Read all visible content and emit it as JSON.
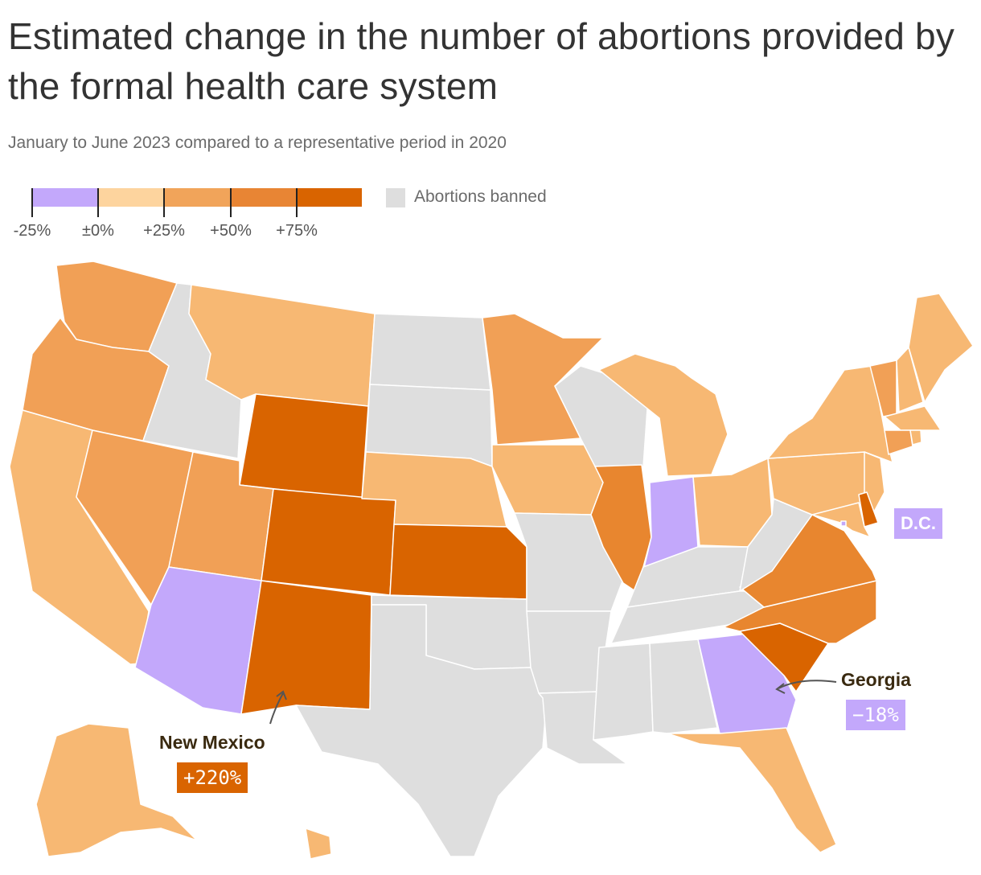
{
  "header": {
    "title": "Estimated change in the number of abortions provided by the formal health care system",
    "subtitle": "January to June 2023 compared to a representative period in 2020"
  },
  "legend": {
    "ticks": [
      "-25%",
      "±0%",
      "+25%",
      "+50%",
      "+75%"
    ],
    "bins": [
      {
        "range": "-25% to 0%",
        "color": "#c3a8fb"
      },
      {
        "range": "0% to +25%",
        "color": "#fdd49e"
      },
      {
        "range": "+25% to +50%",
        "color": "#f1a45a"
      },
      {
        "range": "+50% to +75%",
        "color": "#e88534"
      },
      {
        "range": "+75% and above",
        "color": "#d96400"
      }
    ],
    "banned_label": "Abortions banned",
    "banned_color": "#dedede"
  },
  "palette": {
    "decrease": "#c3a8fb",
    "light": "#f7b873",
    "mid": "#f1a056",
    "high": "#e8862f",
    "highest": "#d96400",
    "banned": "#dedede"
  },
  "callouts": {
    "new_mexico": {
      "name": "New Mexico",
      "value": "+220%"
    },
    "georgia": {
      "name": "Georgia",
      "value": "−18%"
    },
    "dc": {
      "name": "D.C."
    }
  },
  "states": {
    "WA": "mid",
    "OR": "mid",
    "CA": "light",
    "ID": "banned",
    "NV": "mid",
    "MT": "light",
    "WY": "highest",
    "UT": "mid",
    "AZ": "decrease",
    "CO": "highest",
    "NM": "highest",
    "ND": "banned",
    "SD": "banned",
    "NE": "light",
    "KS": "highest",
    "OK": "banned",
    "TX": "banned",
    "MN": "mid",
    "IA": "light",
    "MO": "banned",
    "AR": "banned",
    "LA": "banned",
    "WI": "banned",
    "IL": "high",
    "IN": "decrease",
    "MI": "light",
    "OH": "light",
    "KY": "banned",
    "TN": "banned",
    "MS": "banned",
    "AL": "banned",
    "GA": "decrease",
    "FL": "light",
    "SC": "highest",
    "NC": "high",
    "VA": "high",
    "WV": "banned",
    "PA": "light",
    "NY": "light",
    "NJ": "light",
    "DE": "highest",
    "MD": "light",
    "CT": "mid",
    "RI": "light",
    "MA": "light",
    "VT": "mid",
    "NH": "light",
    "ME": "light",
    "AK": "light",
    "HI": "light",
    "DC": "decrease"
  }
}
